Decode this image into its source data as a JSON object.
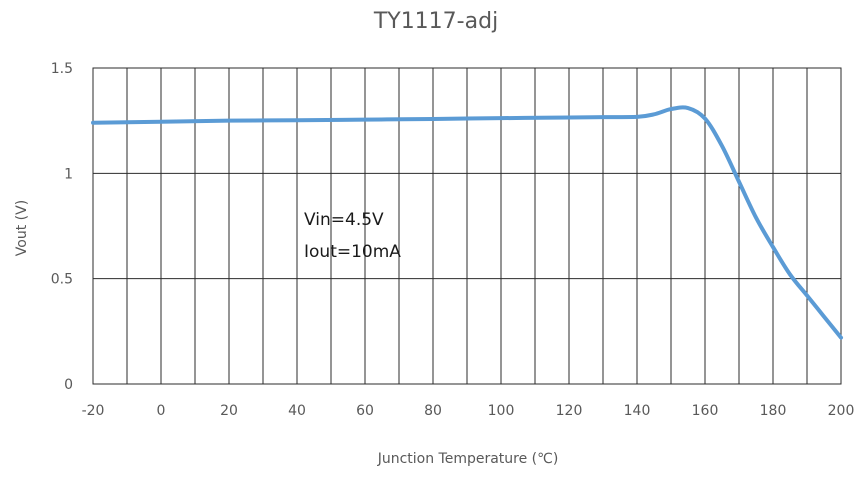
{
  "chart_data": {
    "type": "line",
    "title": "TY1117-adj",
    "xlabel": "Junction Temperature (℃)",
    "ylabel": "Vout (V)",
    "xlim": [
      -20,
      200
    ],
    "ylim": [
      0,
      1.5
    ],
    "x_ticks": [
      -20,
      0,
      20,
      40,
      60,
      80,
      100,
      120,
      140,
      160,
      180,
      200
    ],
    "y_ticks": [
      0,
      0.5,
      1,
      1.5
    ],
    "x_tick_labels": [
      "-20",
      "0",
      "20",
      "40",
      "60",
      "80",
      "100",
      "120",
      "140",
      "160",
      "180",
      "200"
    ],
    "y_tick_labels": [
      "0",
      "0.5",
      "1",
      "1.5"
    ],
    "grid": "on",
    "legend": "none",
    "annotations": [
      "Vin=4.5V",
      "Iout=10mA"
    ],
    "series": [
      {
        "color": "#5B9BD5",
        "x": [
          -20,
          0,
          20,
          40,
          60,
          80,
          100,
          120,
          130,
          140,
          145,
          150,
          155,
          160,
          165,
          170,
          175,
          180,
          185,
          190,
          195,
          200
        ],
        "y": [
          1.24,
          1.245,
          1.25,
          1.252,
          1.255,
          1.258,
          1.262,
          1.265,
          1.267,
          1.268,
          1.28,
          1.305,
          1.31,
          1.26,
          1.13,
          0.96,
          0.79,
          0.65,
          0.52,
          0.42,
          0.32,
          0.22
        ]
      }
    ]
  }
}
